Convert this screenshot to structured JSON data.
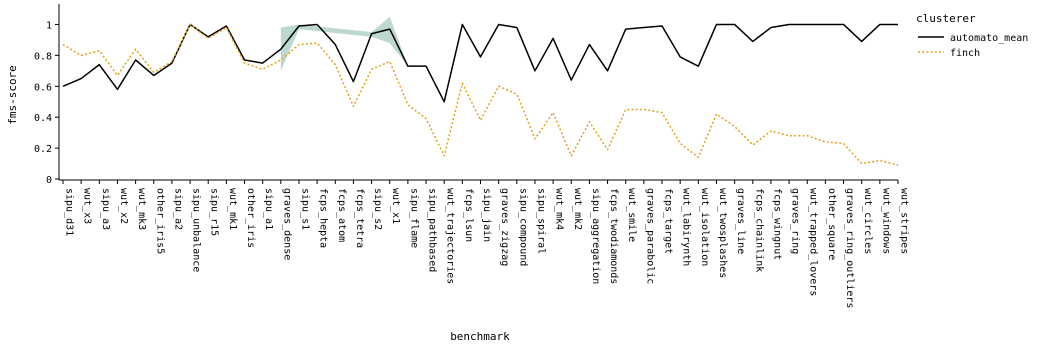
{
  "chart_data": {
    "type": "line",
    "xlabel": "benchmark",
    "ylabel": "fms-score",
    "ylim": [
      0,
      1.1
    ],
    "yticks": [
      "0",
      "0.2",
      "0.4",
      "0.6",
      "0.8",
      "1"
    ],
    "grid": false,
    "legend": {
      "title": "clusterer",
      "placement": "right"
    },
    "categories": [
      "sipu_d31",
      "wut_x3",
      "sipu_a3",
      "wut_x2",
      "wut_mk3",
      "other_iris5",
      "sipu_a2",
      "sipu_unbalance",
      "sipu_r15",
      "wut_mk1",
      "other_iris",
      "sipu_a1",
      "graves_dense",
      "sipu_s1",
      "fcps_hepta",
      "fcps_atom",
      "fcps_tetra",
      "sipu_s2",
      "wut_x1",
      "sipu_flame",
      "sipu_pathbased",
      "wut_trajectories",
      "fcps_lsun",
      "sipu_jain",
      "graves_zigzag",
      "sipu_compound",
      "sipu_spiral",
      "wut_mk4",
      "wut_mk2",
      "sipu_aggregation",
      "fcps_twodiamonds",
      "wut_smile",
      "graves_parabolic",
      "fcps_target",
      "wut_labirynth",
      "wut_isolation",
      "wut_twosplashes",
      "graves_line",
      "fcps_chainlink",
      "fcps_wingnut",
      "graves_ring",
      "wut_trapped_lovers",
      "other_square",
      "graves_ring_outliers",
      "wut_circles",
      "wut_windows",
      "wut_stripes"
    ],
    "series": [
      {
        "name": "automato_mean",
        "color": "#000000",
        "style": "solid",
        "values": [
          0.6,
          0.65,
          0.74,
          0.58,
          0.77,
          0.67,
          0.75,
          1.0,
          0.92,
          0.99,
          0.77,
          0.75,
          0.84,
          0.99,
          1.0,
          0.87,
          0.63,
          0.94,
          0.97,
          0.73,
          0.73,
          0.5,
          1.0,
          0.79,
          1.0,
          0.98,
          0.7,
          0.91,
          0.64,
          0.87,
          0.7,
          0.97,
          0.98,
          0.99,
          0.79,
          0.73,
          1.0,
          1.0,
          0.89,
          0.98,
          1.0,
          1.0,
          1.0,
          1.0,
          0.89,
          1.0,
          1.0
        ],
        "band": [
          {
            "category": "graves_dense",
            "low": 0.7,
            "high": 0.98
          },
          {
            "category": "sipu_s1",
            "low": 0.97,
            "high": 1.0
          },
          {
            "category": "sipu_s2",
            "low": 0.92,
            "high": 0.95
          },
          {
            "category": "wut_x1",
            "low": 0.88,
            "high": 1.05
          },
          {
            "category": "sipu_flame",
            "low": 0.73,
            "high": 0.73
          }
        ],
        "band_color": "#6aa89a"
      },
      {
        "name": "finch",
        "color": "#e3a21a",
        "style": "dotted",
        "values": [
          0.87,
          0.8,
          0.83,
          0.67,
          0.84,
          0.69,
          0.76,
          1.0,
          0.91,
          0.98,
          0.75,
          0.71,
          0.77,
          0.87,
          0.88,
          0.74,
          0.47,
          0.71,
          0.76,
          0.48,
          0.39,
          0.15,
          0.62,
          0.38,
          0.6,
          0.55,
          0.26,
          0.43,
          0.15,
          0.37,
          0.19,
          0.45,
          0.45,
          0.43,
          0.23,
          0.14,
          0.42,
          0.34,
          0.22,
          0.31,
          0.28,
          0.28,
          0.24,
          0.23,
          0.1,
          0.12,
          0.09
        ]
      }
    ]
  }
}
